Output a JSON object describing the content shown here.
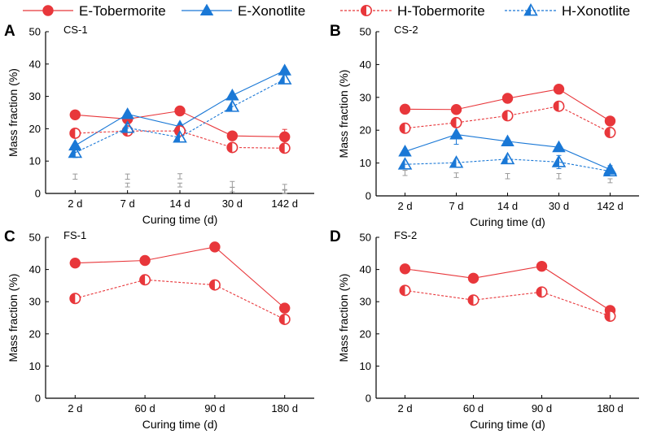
{
  "colors": {
    "red": "#e8373b",
    "blue": "#1a78d6",
    "gray": "#9a9a9a"
  },
  "legend": [
    {
      "label": "E-Tobermorite",
      "color": "#e8373b",
      "marker": "circle",
      "dashed": false
    },
    {
      "label": "E-Xonotlite",
      "color": "#1a78d6",
      "marker": "triangle",
      "dashed": false
    },
    {
      "label": "H-Tobermorite",
      "color": "#e8373b",
      "marker": "half-circle",
      "dashed": true
    },
    {
      "label": "H-Xonotlite",
      "color": "#1a78d6",
      "marker": "half-triangle",
      "dashed": true
    }
  ],
  "chart_data": [
    {
      "type": "line",
      "panel": "A",
      "title": "CS-1",
      "xlabel": "Curing time (d)",
      "ylabel": "Mass fraction (%)",
      "ylim": [
        0,
        50
      ],
      "yticks": [
        0,
        10,
        20,
        30,
        40,
        50
      ],
      "categories": [
        "2 d",
        "7 d",
        "14 d",
        "30 d",
        "142 d"
      ],
      "series": [
        {
          "name": "E-Tobermorite",
          "values": [
            24.3,
            23.0,
            25.5,
            17.8,
            17.5
          ],
          "errors": [
            0,
            0,
            0,
            0,
            2.3
          ]
        },
        {
          "name": "E-Xonotlite",
          "values": [
            14.8,
            24.5,
            20.7,
            30.3,
            38.0
          ]
        },
        {
          "name": "H-Tobermorite",
          "values": [
            18.6,
            19.3,
            19.3,
            14.2,
            14.0
          ]
        },
        {
          "name": "H-Xonotlite",
          "values": [
            12.6,
            20.3,
            17.3,
            26.8,
            35.3
          ],
          "errors": [
            1.5,
            0,
            0,
            0,
            0
          ]
        }
      ],
      "error_marks": [
        {
          "x": "2 d",
          "value": 5.2,
          "error": 0.8
        },
        {
          "x": "7 d",
          "value": 5.2,
          "error": 0.8
        },
        {
          "x": "7 d",
          "value": 2.6,
          "error": 0.6
        },
        {
          "x": "14 d",
          "value": 5.3,
          "error": 0.8
        },
        {
          "x": "14 d",
          "value": 2.6,
          "error": 0.6
        },
        {
          "x": "30 d",
          "value": 2.8,
          "error": 0.9
        },
        {
          "x": "30 d",
          "value": 1.2,
          "error": 0.7
        },
        {
          "x": "142 d",
          "value": 2.0,
          "error": 0.8
        },
        {
          "x": "142 d",
          "value": 0.5,
          "error": 0.5
        }
      ]
    },
    {
      "type": "line",
      "panel": "B",
      "title": "CS-2",
      "xlabel": "Curing time (d)",
      "ylabel": "Mass fraction (%)",
      "ylim": [
        0,
        50
      ],
      "yticks": [
        0,
        10,
        20,
        30,
        40,
        50
      ],
      "categories": [
        "2 d",
        "7 d",
        "14 d",
        "30 d",
        "142 d"
      ],
      "series": [
        {
          "name": "E-Tobermorite",
          "values": [
            26.4,
            26.3,
            29.7,
            32.5,
            22.8
          ],
          "errors": [
            0,
            0,
            0,
            1.0,
            0
          ]
        },
        {
          "name": "E-Xonotlite",
          "values": [
            13.5,
            18.7,
            16.6,
            14.8,
            8.0
          ],
          "errors": [
            0,
            3.0,
            0,
            0,
            1.2
          ]
        },
        {
          "name": "H-Tobermorite",
          "values": [
            20.6,
            22.3,
            24.4,
            27.3,
            19.3
          ]
        },
        {
          "name": "H-Xonotlite",
          "values": [
            9.6,
            10.1,
            11.2,
            10.3,
            7.5
          ],
          "errors": [
            0,
            0,
            0,
            2.0,
            0
          ]
        }
      ],
      "error_marks": [
        {
          "x": "2 d",
          "value": 7.0,
          "error": 0.8
        },
        {
          "x": "7 d",
          "value": 6.3,
          "error": 0.7
        },
        {
          "x": "14 d",
          "value": 6.0,
          "error": 0.8
        },
        {
          "x": "30 d",
          "value": 6.0,
          "error": 0.8
        },
        {
          "x": "142 d",
          "value": 4.6,
          "error": 0.6
        }
      ]
    },
    {
      "type": "line",
      "panel": "C",
      "title": "FS-1",
      "xlabel": "Curing time (d)",
      "ylabel": "Mass fraction (%)",
      "ylim": [
        0,
        50
      ],
      "yticks": [
        0,
        10,
        20,
        30,
        40,
        50
      ],
      "categories": [
        "2 d",
        "60 d",
        "90 d",
        "180 d"
      ],
      "series": [
        {
          "name": "E-Tobermorite",
          "values": [
            42.0,
            42.8,
            47.0,
            28.0
          ]
        },
        {
          "name": "H-Tobermorite",
          "values": [
            31.0,
            36.8,
            35.2,
            24.5
          ]
        }
      ]
    },
    {
      "type": "line",
      "panel": "D",
      "title": "FS-2",
      "xlabel": "Curing time (d)",
      "ylabel": "Mass fraction (%)",
      "ylim": [
        0,
        50
      ],
      "yticks": [
        0,
        10,
        20,
        30,
        40,
        50
      ],
      "categories": [
        "2 d",
        "60 d",
        "90 d",
        "180 d"
      ],
      "series": [
        {
          "name": "E-Tobermorite",
          "values": [
            40.2,
            37.3,
            41.0,
            27.3
          ]
        },
        {
          "name": "H-Tobermorite",
          "values": [
            33.5,
            30.5,
            33.0,
            25.5
          ]
        }
      ]
    }
  ]
}
